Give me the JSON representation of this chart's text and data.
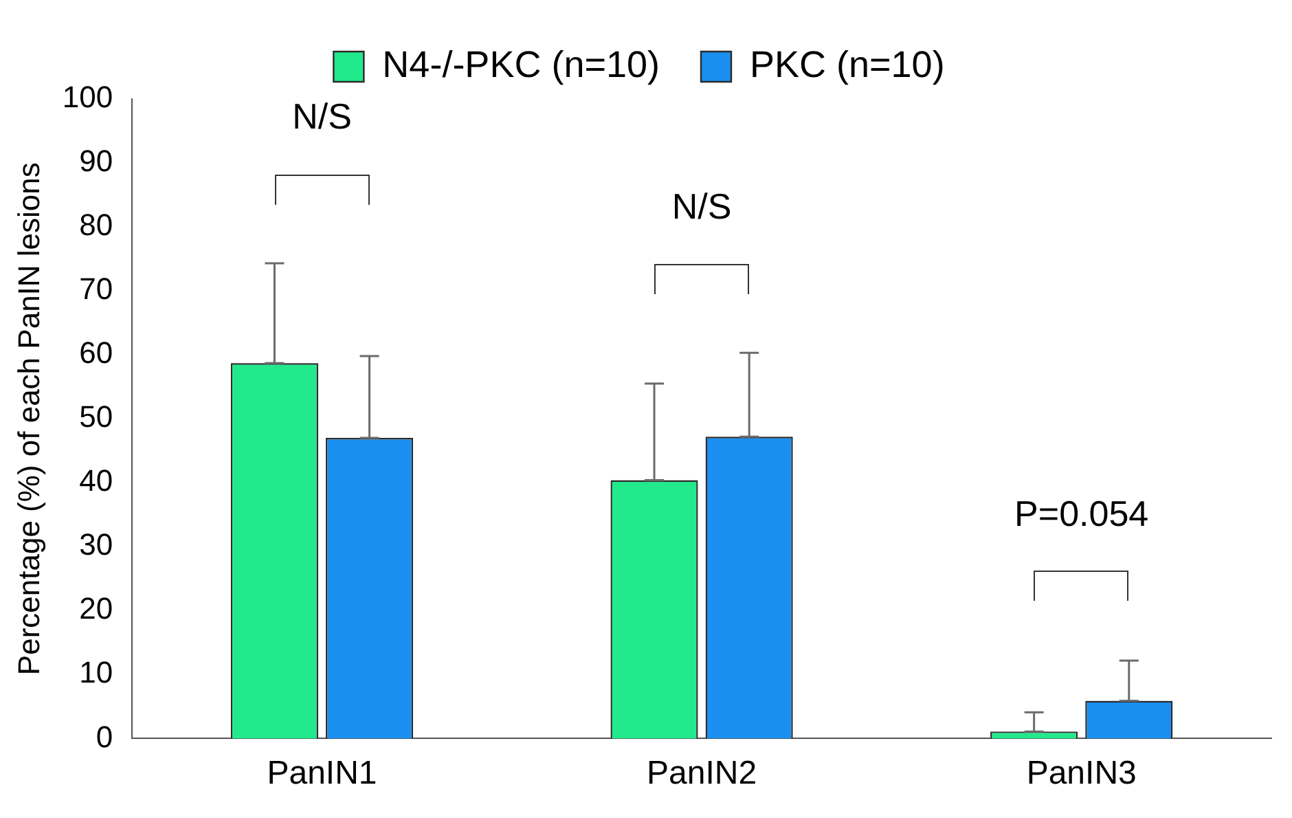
{
  "chart_data": {
    "type": "bar",
    "ylabel": "Percentage (%) of each PanIN lesions",
    "categories": [
      "PanIN1",
      "PanIN2",
      "PanIN3"
    ],
    "series": [
      {
        "name": "N4-/-PKC (n=10)",
        "color": "#22ea8c",
        "values": [
          58.7,
          40.4,
          1.1
        ],
        "errors": [
          [
            58.7,
            74.3
          ],
          [
            40.4,
            55.5
          ],
          [
            1.1,
            4.1
          ]
        ]
      },
      {
        "name": "PKC (n=10)",
        "color": "#1b8ff0",
        "values": [
          47.0,
          47.2,
          5.9
        ],
        "errors": [
          [
            47.0,
            59.8
          ],
          [
            47.2,
            60.3
          ],
          [
            5.9,
            12.2
          ]
        ]
      }
    ],
    "ylim": [
      0,
      100
    ],
    "yticks": [
      0,
      10,
      20,
      30,
      40,
      50,
      60,
      70,
      80,
      90,
      100
    ],
    "grid": false,
    "legend": "top",
    "annotations": [
      "N/S",
      "N/S",
      "P=0.054"
    ]
  }
}
